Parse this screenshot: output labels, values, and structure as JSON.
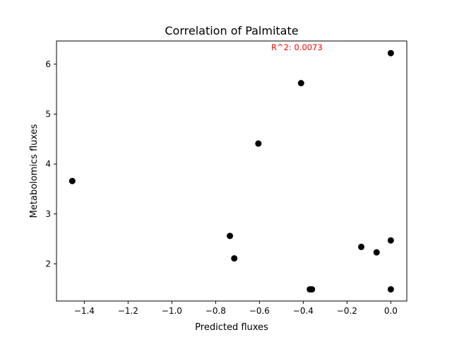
{
  "chart_data": {
    "type": "scatter",
    "title": "Correlation of Palmitate",
    "xlabel": "Predicted fluxes",
    "ylabel": "Metabolomics fluxes",
    "annotation": "R^2: 0.0073",
    "annotation_color": "#ff0000",
    "point_color": "#000000",
    "xlim": [
      -1.527,
      0.073
    ],
    "ylim": [
      1.256,
      6.464
    ],
    "xticks": [
      -1.4,
      -1.2,
      -1.0,
      -0.8,
      -0.6,
      -0.4,
      -0.2,
      0.0
    ],
    "xtick_labels": [
      "−1.4",
      "−1.2",
      "−1.0",
      "−0.8",
      "−0.6",
      "−0.4",
      "−0.2",
      "0.0"
    ],
    "yticks": [
      2,
      3,
      4,
      5,
      6
    ],
    "ytick_labels": [
      "2",
      "3",
      "4",
      "5",
      "6"
    ],
    "grid": false,
    "points": [
      {
        "x": -1.455,
        "y": 3.66
      },
      {
        "x": -0.735,
        "y": 2.56
      },
      {
        "x": -0.715,
        "y": 2.11
      },
      {
        "x": -0.605,
        "y": 4.41
      },
      {
        "x": -0.41,
        "y": 5.62
      },
      {
        "x": -0.37,
        "y": 1.49
      },
      {
        "x": -0.36,
        "y": 1.49
      },
      {
        "x": -0.135,
        "y": 2.34
      },
      {
        "x": -0.065,
        "y": 2.23
      },
      {
        "x": 0.0,
        "y": 6.22
      },
      {
        "x": 0.0,
        "y": 2.47
      },
      {
        "x": 0.0,
        "y": 1.49
      }
    ]
  }
}
